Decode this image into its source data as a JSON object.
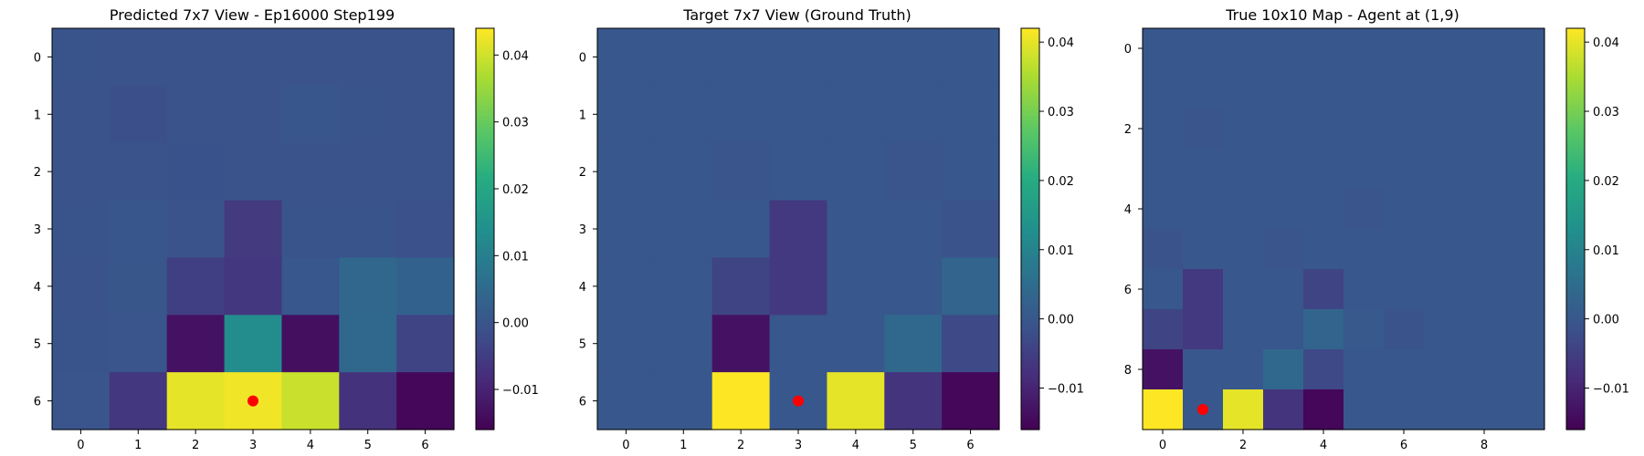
{
  "chart_data": [
    {
      "type": "heatmap",
      "title": "Predicted 7x7 View - Ep16000 Step199",
      "xticks": [
        "0",
        "1",
        "2",
        "3",
        "4",
        "5",
        "6"
      ],
      "yticks": [
        "0",
        "1",
        "2",
        "3",
        "4",
        "5",
        "6"
      ],
      "rows": 7,
      "cols": 7,
      "values": [
        [
          -0.0002,
          -0.0003,
          -0.0003,
          -0.0003,
          -0.0004,
          -0.0003,
          -0.0003
        ],
        [
          -0.0003,
          -0.0012,
          -0.0003,
          -0.0003,
          0.0003,
          -0.0002,
          -0.0003
        ],
        [
          -0.0003,
          -0.0003,
          -0.0007,
          -0.0005,
          -0.0005,
          -0.0005,
          -0.0003
        ],
        [
          -0.0002,
          0.0003,
          -0.0003,
          -0.0055,
          -0.0002,
          -0.0002,
          -0.001
        ],
        [
          -0.0003,
          0.0002,
          -0.0045,
          -0.006,
          0.0005,
          0.004,
          0.003
        ],
        [
          -0.0002,
          -0.0001,
          -0.013,
          0.013,
          -0.0135,
          0.0045,
          -0.0035
        ],
        [
          -0.0001,
          -0.006,
          0.042,
          0.043,
          0.0395,
          -0.007,
          -0.015
        ]
      ],
      "marker": {
        "col": 3,
        "row": 6,
        "color": "#ff0000"
      },
      "colorbar": {
        "vmin": -0.016,
        "vmax": 0.044,
        "ticks": [
          -0.01,
          0.0,
          0.01,
          0.02,
          0.03,
          0.04
        ],
        "tick_labels": [
          "−0.01",
          "0.00",
          "0.01",
          "0.02",
          "0.03",
          "0.04"
        ]
      }
    },
    {
      "type": "heatmap",
      "title": "Target 7x7 View (Ground Truth)",
      "xticks": [
        "0",
        "1",
        "2",
        "3",
        "4",
        "5",
        "6"
      ],
      "yticks": [
        "0",
        "1",
        "2",
        "3",
        "4",
        "5",
        "6"
      ],
      "rows": 7,
      "cols": 7,
      "values": [
        [
          0,
          0,
          0,
          0,
          0,
          0,
          0
        ],
        [
          0,
          0,
          0,
          0,
          0,
          0,
          0
        ],
        [
          0,
          0,
          -0.0005,
          0,
          0,
          -0.0005,
          0
        ],
        [
          0,
          0,
          0,
          -0.006,
          0,
          0,
          -0.001
        ],
        [
          0,
          0,
          -0.004,
          -0.006,
          0,
          0,
          0.003
        ],
        [
          0,
          0,
          -0.013,
          0,
          0,
          0.004,
          -0.003
        ],
        [
          0,
          0,
          0.042,
          0,
          0.04,
          -0.007,
          -0.015
        ]
      ],
      "marker": {
        "col": 3,
        "row": 6,
        "color": "#ff0000"
      },
      "colorbar": {
        "vmin": -0.016,
        "vmax": 0.042,
        "ticks": [
          -0.01,
          0.0,
          0.01,
          0.02,
          0.03,
          0.04
        ],
        "tick_labels": [
          "−0.01",
          "0.00",
          "0.01",
          "0.02",
          "0.03",
          "0.04"
        ]
      }
    },
    {
      "type": "heatmap",
      "title": "True 10x10 Map - Agent at (1,9)",
      "xticks": [
        "0",
        "2",
        "4",
        "6",
        "8"
      ],
      "xtick_positions": [
        0,
        2,
        4,
        6,
        8
      ],
      "yticks": [
        "0",
        "2",
        "4",
        "6",
        "8"
      ],
      "ytick_positions": [
        0,
        2,
        4,
        6,
        8
      ],
      "rows": 10,
      "cols": 10,
      "values": [
        [
          0,
          0,
          0,
          0,
          0,
          0,
          0,
          0,
          0,
          0
        ],
        [
          0,
          0,
          0,
          0,
          0,
          0,
          0,
          0,
          0,
          0
        ],
        [
          0,
          -0.0005,
          0,
          0,
          0,
          0,
          0,
          0,
          0,
          0
        ],
        [
          0,
          0,
          0,
          0,
          0,
          0,
          0,
          0,
          0,
          0
        ],
        [
          0,
          0,
          0,
          0,
          0,
          -0.0005,
          0,
          0,
          0,
          0
        ],
        [
          -0.001,
          0,
          0,
          -0.0005,
          0,
          0,
          0,
          0,
          0,
          0
        ],
        [
          0,
          -0.006,
          0,
          0,
          -0.004,
          0,
          0,
          0,
          0,
          0
        ],
        [
          -0.004,
          -0.006,
          0,
          0,
          0.003,
          0.0005,
          -0.001,
          0,
          0,
          0
        ],
        [
          -0.013,
          0,
          0,
          0.004,
          -0.003,
          0,
          0,
          0,
          0,
          0
        ],
        [
          0.042,
          0,
          0.04,
          -0.007,
          -0.015,
          0,
          0,
          0,
          0,
          0
        ]
      ],
      "marker": {
        "col": 1,
        "row": 9,
        "color": "#ff0000"
      },
      "colorbar": {
        "vmin": -0.016,
        "vmax": 0.042,
        "ticks": [
          -0.01,
          0.0,
          0.01,
          0.02,
          0.03,
          0.04
        ],
        "tick_labels": [
          "−0.01",
          "0.00",
          "0.01",
          "0.02",
          "0.03",
          "0.04"
        ]
      }
    }
  ]
}
